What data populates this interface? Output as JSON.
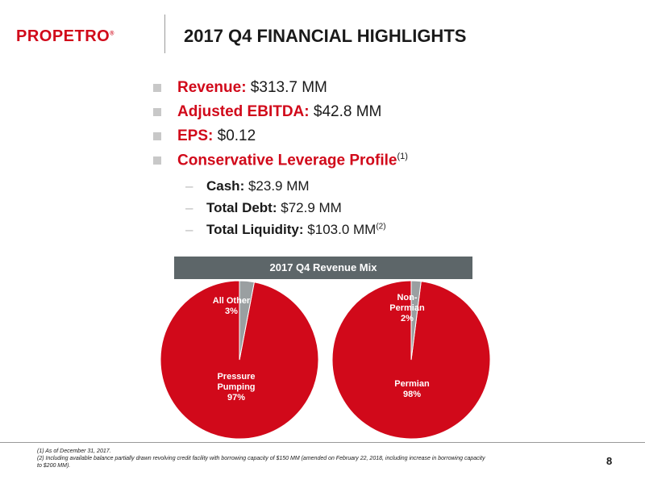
{
  "logo": {
    "text": "PROPETRO",
    "mark": "®"
  },
  "title": "2017 Q4 FINANCIAL HIGHLIGHTS",
  "bullets": [
    {
      "label": "Revenue:",
      "value": " $313.7 MM"
    },
    {
      "label": "Adjusted EBITDA:",
      "value": " $42.8 MM"
    },
    {
      "label": "EPS:",
      "value": " $0.12"
    },
    {
      "label": "Conservative Leverage Profile",
      "sup": "(1)",
      "value": ""
    }
  ],
  "sub_bullets": [
    {
      "dash": "–",
      "label": "Cash:",
      "value": " $23.9 MM",
      "sup": ""
    },
    {
      "dash": "–",
      "label": "Total Debt:",
      "value": " $72.9 MM",
      "sup": ""
    },
    {
      "dash": "–",
      "label": "Total Liquidity:",
      "value": " $103.0 MM",
      "sup": "(2)"
    }
  ],
  "mix_header": "2017 Q4 Revenue Mix",
  "chart_data": [
    {
      "type": "pie",
      "slices": [
        {
          "label": [
            "Pressure",
            "Pumping",
            "97%"
          ],
          "value": 97,
          "color": "#d1091a"
        },
        {
          "label": [
            "All Other",
            "3%"
          ],
          "value": 3,
          "color": "#9a9fa1"
        }
      ]
    },
    {
      "type": "pie",
      "slices": [
        {
          "label": [
            "Permian",
            "98%"
          ],
          "value": 98,
          "color": "#d1091a"
        },
        {
          "label": [
            "Non-",
            "Permian",
            "2%"
          ],
          "value": 2,
          "color": "#9a9fa1"
        }
      ]
    }
  ],
  "footnotes": [
    "(1)  As of December 31, 2017.",
    "(2) Including available balance partially drawn revolving credit facility with borrowing capacity of $150 MM (amended on February 22, 2018, including increase in borrowing capacity",
    "to $200 MM)."
  ],
  "page_number": "8"
}
